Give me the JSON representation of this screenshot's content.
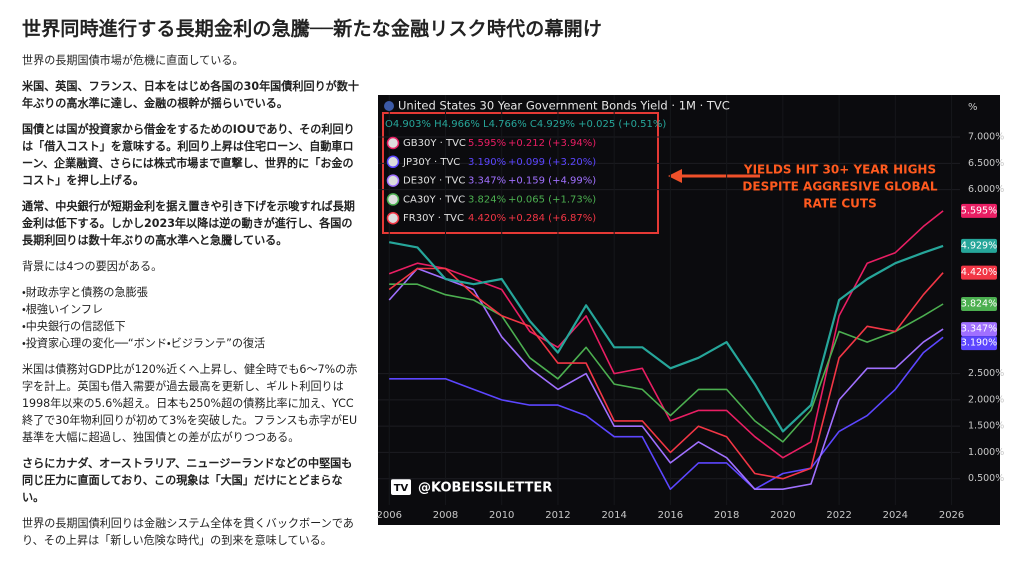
{
  "title": "世界同時進行する長期金利の急騰──新たな金融リスク時代の幕開け",
  "paragraphs": [
    {
      "text": "世界の長期国債市場が危機に直面している。",
      "bold": false
    },
    {
      "text": "米国、英国、フランス、日本をはじめ各国の30年国債利回りが数十年ぶりの高水準に達し、金融の根幹が揺らいでいる。",
      "bold": true
    },
    {
      "text": "国債とは国が投資家から借金をするためのIOUであり、その利回りは「借入コスト」を意味する。利回り上昇は住宅ローン、自動車ローン、企業融資、さらには株式市場まで直撃し、世界的に「お金のコスト」を押し上げる。",
      "bold": true
    },
    {
      "text": "通常、中央銀行が短期金利を据え置きや引き下げを示唆すれば長期金利は低下する。しかし2023年以降は逆の動きが進行し、各国の長期利回りは数十年ぶりの高水準へと急騰している。",
      "bold": true
    },
    {
      "text": "背景には4つの要因がある。",
      "bold": false
    },
    {
      "items": [
        "・財政赤字と債務の急膨張",
        "・根強いインフレ",
        "・中央銀行の信認低下",
        "・投資家心理の変化──“ボンド・ビジランテ”の復活"
      ],
      "bold": false
    },
    {
      "text": "米国は債務対GDP比が120%近くへ上昇し、健全時でも6〜7%の赤字を計上。英国も借入需要が過去最高を更新し、ギルト利回りは1998年以来の5.6%超え。日本も250%超の債務比率に加え、YCC終了で30年物利回りが初めて3%を突破した。フランスも赤字がEU基準を大幅に超過し、独国債との差が広がりつつある。",
      "bold": false
    },
    {
      "text": "さらにカナダ、オーストラリア、ニュージーランドなどの中堅国も同じ圧力に直面しており、この現象は「大国」だけにとどまらない。",
      "bold": true
    },
    {
      "text": "世界の長期国債利回りは金融システム全体を貫くバックボーンであり、その上昇は「新しい危険な時代」の到来を意味している。",
      "bold": false
    }
  ],
  "chart_data": {
    "type": "line",
    "ohlc": "O4.903% H4.966% L4.766% C4.929% +0.025 (+0.51%)",
    "annotation": [
      "YIELDS HIT 30+ YEAR HIGHS",
      "DESPITE AGGRESIVE GLOBAL",
      "RATE CUTS"
    ],
    "watermark": "@KOBEISSILETTER",
    "axis_unit": "%",
    "x": [
      2006,
      2007,
      2008,
      2009,
      2010,
      2011,
      2012,
      2013,
      2014,
      2015,
      2016,
      2017,
      2018,
      2019,
      2020,
      2021,
      2022,
      2023,
      2024,
      2025,
      2025.7
    ],
    "xlim": [
      2005.6,
      2026.3
    ],
    "xticks": [
      2006,
      2008,
      2010,
      2012,
      2014,
      2016,
      2018,
      2020,
      2022,
      2024,
      2026
    ],
    "ylim": [
      0,
      7.8
    ],
    "yticks": [
      {
        "value": 7,
        "label": "7.000%"
      },
      {
        "value": 6.5,
        "label": "6.500%"
      },
      {
        "value": 6,
        "label": "6.000%"
      },
      {
        "value": 2.5,
        "label": "2.500%"
      },
      {
        "value": 2,
        "label": "2.000%"
      },
      {
        "value": 1.5,
        "label": "1.500%"
      },
      {
        "value": 1,
        "label": "1.000%"
      },
      {
        "value": 0.5,
        "label": "0.500%"
      }
    ],
    "series": [
      {
        "name": "United States 30 Year Government Bonds Yield · 1M · TVC",
        "color": "#26a69a",
        "values": [
          5.0,
          4.9,
          4.3,
          4.2,
          4.3,
          3.5,
          2.9,
          3.8,
          3.0,
          3.0,
          2.6,
          2.8,
          3.1,
          2.3,
          1.4,
          1.9,
          3.9,
          4.3,
          4.6,
          4.8,
          4.929
        ],
        "value_labels": [
          null,
          null,
          null,
          null,
          null,
          null,
          null,
          null,
          null,
          null,
          null,
          null,
          null,
          null,
          null,
          null,
          null,
          null,
          null,
          null,
          "4.929%"
        ]
      },
      {
        "name": "GB30Y · TVC",
        "color": "#e91e63",
        "change": "+0.212 (+3.94%)",
        "values": [
          4.4,
          4.6,
          4.5,
          4.3,
          4.1,
          3.3,
          3.0,
          3.6,
          2.5,
          2.6,
          1.6,
          1.8,
          1.8,
          1.3,
          0.9,
          1.2,
          3.6,
          4.6,
          4.8,
          5.3,
          5.595
        ],
        "value_labels": [
          null,
          null,
          null,
          null,
          null,
          null,
          null,
          null,
          null,
          null,
          null,
          null,
          null,
          null,
          null,
          null,
          null,
          null,
          null,
          null,
          "5.595%"
        ]
      },
      {
        "name": "JP30Y · TVC",
        "color": "#5c46ff",
        "change": "+0.099 (+3.20%)",
        "values": [
          2.4,
          2.4,
          2.4,
          2.2,
          2.0,
          1.9,
          1.9,
          1.7,
          1.3,
          1.3,
          0.3,
          0.8,
          0.8,
          0.3,
          0.6,
          0.7,
          1.4,
          1.7,
          2.2,
          2.9,
          3.19
        ],
        "value_labels": [
          null,
          null,
          null,
          null,
          null,
          null,
          null,
          null,
          null,
          null,
          null,
          null,
          null,
          null,
          null,
          null,
          null,
          null,
          null,
          null,
          "3.190%"
        ]
      },
      {
        "name": "DE30Y · TVC",
        "color": "#a070ff",
        "change": "+0.159 (+4.99%)",
        "values": [
          3.9,
          4.5,
          4.3,
          4.1,
          3.2,
          2.6,
          2.2,
          2.5,
          1.5,
          1.5,
          0.8,
          1.2,
          0.9,
          0.3,
          0.3,
          0.4,
          2.0,
          2.6,
          2.6,
          3.1,
          3.347
        ],
        "value_labels": [
          null,
          null,
          null,
          null,
          null,
          null,
          null,
          null,
          null,
          null,
          null,
          null,
          null,
          null,
          null,
          null,
          null,
          null,
          null,
          null,
          "3.347%"
        ]
      },
      {
        "name": "CA30Y · TVC",
        "color": "#4caf50",
        "change": "+0.065 (+1.73%)",
        "values": [
          4.2,
          4.2,
          4.0,
          3.9,
          3.6,
          2.8,
          2.4,
          3.0,
          2.3,
          2.2,
          1.7,
          2.2,
          2.2,
          1.6,
          1.2,
          1.8,
          3.3,
          3.1,
          3.3,
          3.6,
          3.824
        ],
        "value_labels": [
          null,
          null,
          null,
          null,
          null,
          null,
          null,
          null,
          null,
          null,
          null,
          null,
          null,
          null,
          null,
          null,
          null,
          null,
          null,
          null,
          "3.824%"
        ]
      },
      {
        "name": "FR30Y · TVC",
        "color": "#f23645",
        "change": "+0.284 (+6.87%)",
        "values": [
          4.1,
          4.5,
          4.5,
          4.0,
          3.6,
          3.4,
          2.7,
          2.7,
          1.6,
          1.6,
          1.0,
          1.5,
          1.3,
          0.6,
          0.5,
          0.7,
          2.8,
          3.4,
          3.3,
          4.0,
          4.42
        ],
        "value_labels": [
          null,
          null,
          null,
          null,
          null,
          null,
          null,
          null,
          null,
          null,
          null,
          null,
          null,
          null,
          null,
          null,
          null,
          null,
          null,
          null,
          "4.420%"
        ]
      }
    ]
  }
}
